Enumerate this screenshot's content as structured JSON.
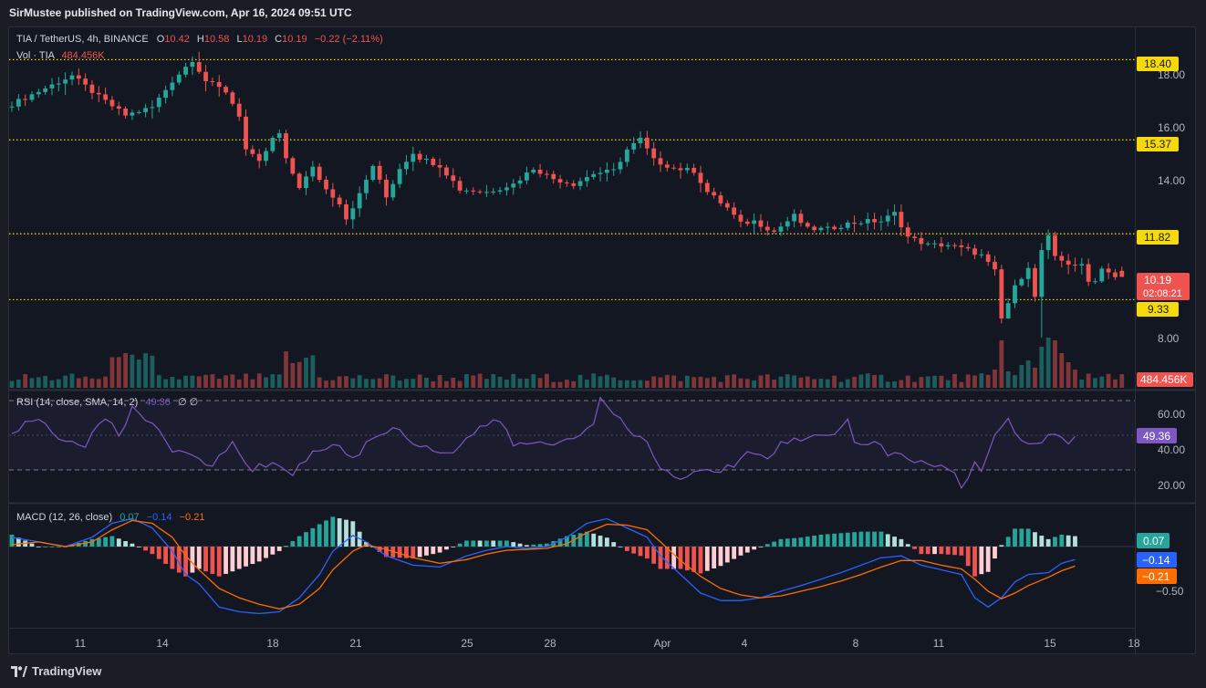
{
  "header": {
    "credit": "SirMustee published on TradingView.com, Apr 16, 2024 09:51 UTC"
  },
  "legend": {
    "symbol": "TIA / TetherUS, 4h, BINANCE",
    "o_label": "O",
    "o_value": "10.42",
    "h_label": "H",
    "h_value": "10.58",
    "l_label": "L",
    "l_value": "10.19",
    "c_label": "C",
    "c_value": "10.19",
    "change": "−0.22 (−2.11%)",
    "vol_label": "Vol · TIA",
    "vol_value": "484.456K"
  },
  "rsi": {
    "label": "RSI (14, close, SMA, 14, 2)",
    "value": "49.36",
    "extra": "∅ ∅"
  },
  "macd": {
    "label": "MACD (12, 26, close)",
    "hist_value": "0.07",
    "macd_value": "−0.14",
    "signal_value": "−0.21"
  },
  "badges": {
    "lvl_1840": "18.40",
    "lvl_1537": "15.37",
    "lvl_1182": "11.82",
    "lvl_933": "9.33",
    "price": "10.19",
    "countdown": "02:08:21",
    "volume": "484.456K",
    "rsi": "49.36",
    "macd_hist": "0.07",
    "macd_line": "−0.14",
    "macd_signal": "−0.21"
  },
  "footer": {
    "brand": "TradingView"
  },
  "colors": {
    "up": "#26a69a",
    "down": "#ef5350",
    "level": "#f5d90a",
    "rsi": "#7e57c2",
    "macd": "#2962ff",
    "signal": "#ff6d00",
    "hist_up": "#26a69a",
    "hist_up_fade": "#b2dfdb",
    "hist_down": "#ef5350",
    "hist_down_fade": "#ffcdd2",
    "background": "#131722",
    "text": "#b2b5be"
  },
  "chart_data": {
    "type": "candlestick",
    "symbol": "TIA / TetherUS",
    "timeframe": "4h",
    "exchange": "BINANCE",
    "price_ticks": [
      "18.00",
      "16.00",
      "14.00",
      "8.00"
    ],
    "price_ylim": [
      7.0,
      19.2
    ],
    "x_ticks": [
      "11",
      "14",
      "18",
      "21",
      "25",
      "28",
      "Apr",
      "4",
      "8",
      "11",
      "15",
      "18"
    ],
    "horizontal_levels": [
      18.4,
      15.37,
      11.82,
      9.33
    ],
    "last_candle": {
      "open": 10.42,
      "high": 10.58,
      "low": 10.19,
      "close": 10.19
    },
    "price_path": [
      [
        0,
        16.6
      ],
      [
        5,
        17.2
      ],
      [
        10,
        17.8
      ],
      [
        14,
        17.0
      ],
      [
        18,
        16.3
      ],
      [
        22,
        16.6
      ],
      [
        25,
        17.6
      ],
      [
        28,
        18.4
      ],
      [
        30,
        17.6
      ],
      [
        33,
        17.2
      ],
      [
        35,
        16.3
      ],
      [
        36,
        15.0
      ],
      [
        38,
        14.5
      ],
      [
        40,
        15.4
      ],
      [
        41,
        15.6
      ],
      [
        42,
        14.6
      ],
      [
        44,
        13.6
      ],
      [
        46,
        14.3
      ],
      [
        48,
        13.5
      ],
      [
        50,
        13.0
      ],
      [
        51,
        12.4
      ],
      [
        53,
        13.3
      ],
      [
        55,
        14.4
      ],
      [
        57,
        13.2
      ],
      [
        59,
        14.3
      ],
      [
        61,
        14.9
      ],
      [
        62,
        14.7
      ],
      [
        65,
        14.4
      ],
      [
        68,
        13.5
      ],
      [
        72,
        13.4
      ],
      [
        76,
        13.7
      ],
      [
        79,
        14.3
      ],
      [
        82,
        13.9
      ],
      [
        85,
        13.7
      ],
      [
        88,
        14.1
      ],
      [
        91,
        14.2
      ],
      [
        93,
        15.0
      ],
      [
        95,
        15.4
      ],
      [
        97,
        14.6
      ],
      [
        100,
        14.3
      ],
      [
        103,
        14.2
      ],
      [
        105,
        13.4
      ],
      [
        108,
        12.8
      ],
      [
        110,
        12.2
      ],
      [
        112,
        12.3
      ],
      [
        115,
        11.9
      ],
      [
        118,
        12.5
      ],
      [
        120,
        12.0
      ],
      [
        123,
        12.0
      ],
      [
        126,
        12.2
      ],
      [
        129,
        12.3
      ],
      [
        131,
        12.3
      ],
      [
        133,
        12.6
      ],
      [
        135,
        11.7
      ],
      [
        138,
        11.4
      ],
      [
        141,
        11.4
      ],
      [
        144,
        11.2
      ],
      [
        146,
        11.0
      ],
      [
        148,
        10.4
      ],
      [
        149,
        8.6
      ],
      [
        151,
        9.8
      ],
      [
        153,
        10.6
      ],
      [
        154,
        9.4
      ],
      [
        155,
        11.2
      ],
      [
        156,
        11.7
      ],
      [
        157,
        10.9
      ],
      [
        159,
        10.7
      ],
      [
        161,
        10.6
      ],
      [
        162,
        10.0
      ],
      [
        163,
        10.1
      ],
      [
        164,
        10.5
      ],
      [
        165,
        10.42
      ],
      [
        166,
        10.19
      ]
    ],
    "rsi_ticks": [
      "60.00",
      "40.00",
      "20.00"
    ],
    "rsi_ylim": [
      10,
      78
    ],
    "rsi_bands": [
      70,
      50,
      30
    ],
    "rsi_path": [
      [
        0,
        52
      ],
      [
        4,
        60
      ],
      [
        7,
        48
      ],
      [
        11,
        45
      ],
      [
        14,
        60
      ],
      [
        16,
        50
      ],
      [
        18,
        65
      ],
      [
        22,
        55
      ],
      [
        24,
        40
      ],
      [
        27,
        38
      ],
      [
        30,
        33
      ],
      [
        33,
        45
      ],
      [
        36,
        30
      ],
      [
        39,
        35
      ],
      [
        42,
        28
      ],
      [
        45,
        40
      ],
      [
        48,
        45
      ],
      [
        51,
        37
      ],
      [
        54,
        48
      ],
      [
        57,
        55
      ],
      [
        60,
        46
      ],
      [
        63,
        42
      ],
      [
        66,
        40
      ],
      [
        70,
        55
      ],
      [
        73,
        58
      ],
      [
        75,
        45
      ],
      [
        78,
        45
      ],
      [
        81,
        45
      ],
      [
        84,
        49
      ],
      [
        87,
        58
      ],
      [
        88,
        70
      ],
      [
        90,
        62
      ],
      [
        93,
        50
      ],
      [
        95,
        47
      ],
      [
        97,
        30
      ],
      [
        100,
        25
      ],
      [
        103,
        30
      ],
      [
        105,
        28
      ],
      [
        108,
        33
      ],
      [
        110,
        42
      ],
      [
        113,
        38
      ],
      [
        115,
        45
      ],
      [
        117,
        47
      ],
      [
        120,
        49
      ],
      [
        123,
        52
      ],
      [
        125,
        60
      ],
      [
        126,
        45
      ],
      [
        129,
        46
      ],
      [
        131,
        40
      ],
      [
        133,
        38
      ],
      [
        135,
        34
      ],
      [
        137,
        33
      ],
      [
        140,
        32
      ],
      [
        141,
        28
      ],
      [
        142,
        18
      ],
      [
        144,
        36
      ],
      [
        145,
        30
      ],
      [
        147,
        50
      ],
      [
        149,
        58
      ],
      [
        151,
        45
      ],
      [
        153,
        45
      ],
      [
        155,
        50
      ],
      [
        157,
        48
      ],
      [
        158,
        45
      ],
      [
        159,
        49.36
      ]
    ],
    "macd_ticks": [
      "−0.50"
    ],
    "macd_ylim": [
      -0.85,
      0.5
    ],
    "macd_path": [
      [
        0,
        0.1
      ],
      [
        4,
        0.05
      ],
      [
        8,
        0.0
      ],
      [
        12,
        0.1
      ],
      [
        15,
        0.25
      ],
      [
        18,
        0.3
      ],
      [
        21,
        0.2
      ],
      [
        24,
        -0.05
      ],
      [
        26,
        -0.3
      ],
      [
        28,
        -0.4
      ],
      [
        31,
        -0.65
      ],
      [
        34,
        -0.7
      ],
      [
        37,
        -0.72
      ],
      [
        40,
        -0.7
      ],
      [
        43,
        -0.55
      ],
      [
        46,
        -0.3
      ],
      [
        48,
        -0.05
      ],
      [
        51,
        0.12
      ],
      [
        53,
        0.05
      ],
      [
        56,
        -0.1
      ],
      [
        60,
        -0.2
      ],
      [
        64,
        -0.22
      ],
      [
        68,
        -0.1
      ],
      [
        71,
        -0.04
      ],
      [
        74,
        0.0
      ],
      [
        77,
        -0.02
      ],
      [
        80,
        0.0
      ],
      [
        83,
        0.1
      ],
      [
        86,
        0.25
      ],
      [
        89,
        0.3
      ],
      [
        92,
        0.2
      ],
      [
        95,
        0.1
      ],
      [
        97,
        -0.1
      ],
      [
        100,
        -0.3
      ],
      [
        103,
        -0.5
      ],
      [
        106,
        -0.58
      ],
      [
        109,
        -0.58
      ],
      [
        112,
        -0.55
      ],
      [
        115,
        -0.48
      ],
      [
        118,
        -0.42
      ],
      [
        121,
        -0.35
      ],
      [
        124,
        -0.28
      ],
      [
        127,
        -0.2
      ],
      [
        130,
        -0.12
      ],
      [
        133,
        -0.1
      ],
      [
        136,
        -0.2
      ],
      [
        139,
        -0.25
      ],
      [
        142,
        -0.3
      ],
      [
        144,
        -0.55
      ],
      [
        146,
        -0.65
      ],
      [
        148,
        -0.55
      ],
      [
        150,
        -0.38
      ],
      [
        152,
        -0.3
      ],
      [
        155,
        -0.28
      ],
      [
        157,
        -0.18
      ],
      [
        159,
        -0.14
      ]
    ],
    "signal_path": [
      [
        0,
        0.02
      ],
      [
        4,
        0.05
      ],
      [
        8,
        0.0
      ],
      [
        12,
        0.05
      ],
      [
        15,
        0.18
      ],
      [
        18,
        0.28
      ],
      [
        21,
        0.25
      ],
      [
        24,
        0.1
      ],
      [
        26,
        -0.1
      ],
      [
        28,
        -0.25
      ],
      [
        31,
        -0.45
      ],
      [
        34,
        -0.55
      ],
      [
        37,
        -0.62
      ],
      [
        40,
        -0.67
      ],
      [
        43,
        -0.62
      ],
      [
        46,
        -0.45
      ],
      [
        48,
        -0.25
      ],
      [
        51,
        -0.05
      ],
      [
        53,
        0.02
      ],
      [
        56,
        -0.03
      ],
      [
        60,
        -0.12
      ],
      [
        64,
        -0.18
      ],
      [
        68,
        -0.14
      ],
      [
        71,
        -0.08
      ],
      [
        74,
        -0.04
      ],
      [
        77,
        -0.03
      ],
      [
        80,
        -0.02
      ],
      [
        83,
        0.03
      ],
      [
        86,
        0.15
      ],
      [
        89,
        0.24
      ],
      [
        92,
        0.23
      ],
      [
        95,
        0.18
      ],
      [
        97,
        0.05
      ],
      [
        100,
        -0.15
      ],
      [
        103,
        -0.32
      ],
      [
        106,
        -0.45
      ],
      [
        109,
        -0.52
      ],
      [
        112,
        -0.55
      ],
      [
        115,
        -0.53
      ],
      [
        118,
        -0.48
      ],
      [
        121,
        -0.43
      ],
      [
        124,
        -0.37
      ],
      [
        127,
        -0.3
      ],
      [
        130,
        -0.22
      ],
      [
        133,
        -0.15
      ],
      [
        136,
        -0.15
      ],
      [
        139,
        -0.2
      ],
      [
        142,
        -0.24
      ],
      [
        144,
        -0.35
      ],
      [
        146,
        -0.48
      ],
      [
        148,
        -0.56
      ],
      [
        150,
        -0.5
      ],
      [
        152,
        -0.42
      ],
      [
        155,
        -0.33
      ],
      [
        157,
        -0.26
      ],
      [
        159,
        -0.21
      ]
    ]
  }
}
